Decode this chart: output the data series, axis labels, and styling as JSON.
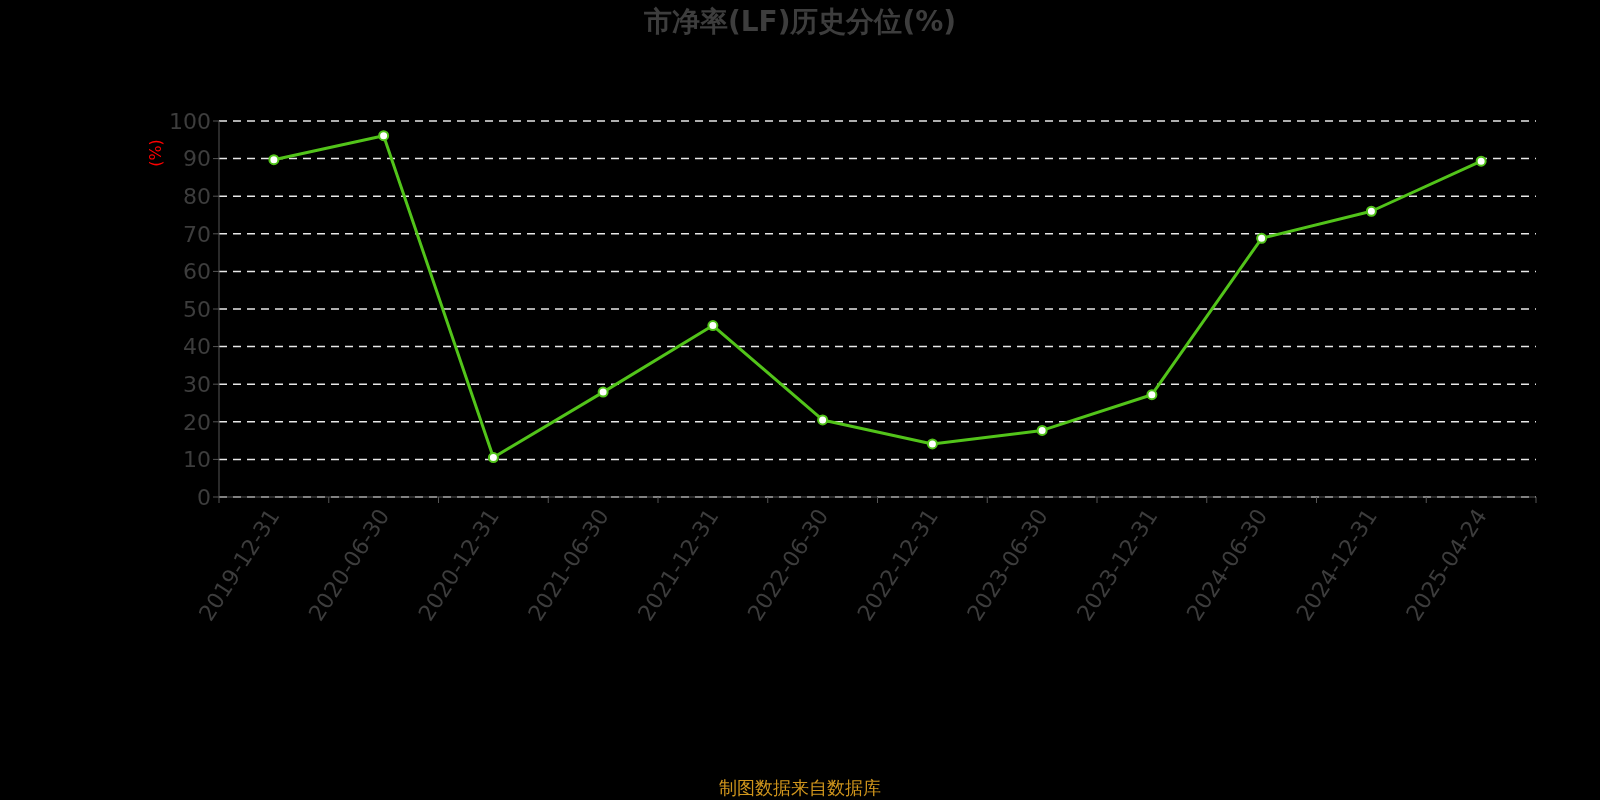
{
  "chart_data": {
    "type": "line",
    "title": "市净率(LF)历史分位(%)",
    "ylabel": "(%)",
    "annotations": [
      "制图数据来自数据库"
    ],
    "categories": [
      "2019-12-31",
      "2020-06-30",
      "2020-12-31",
      "2021-06-30",
      "2021-12-31",
      "2022-06-30",
      "2022-12-31",
      "2023-06-30",
      "2023-12-31",
      "2024-06-30",
      "2024-12-31",
      "2025-04-24"
    ],
    "values": [
      89.7,
      96.1,
      10.5,
      27.9,
      45.6,
      20.5,
      14.1,
      17.7,
      27.2,
      68.8,
      76.0,
      89.3
    ],
    "color": "#52c41a",
    "ylim": [
      0,
      100
    ],
    "yticks": [
      0,
      10,
      20,
      30,
      40,
      50,
      60,
      70,
      80,
      90,
      100
    ],
    "grid": "y",
    "marker": "circle",
    "line_style": "solid"
  }
}
